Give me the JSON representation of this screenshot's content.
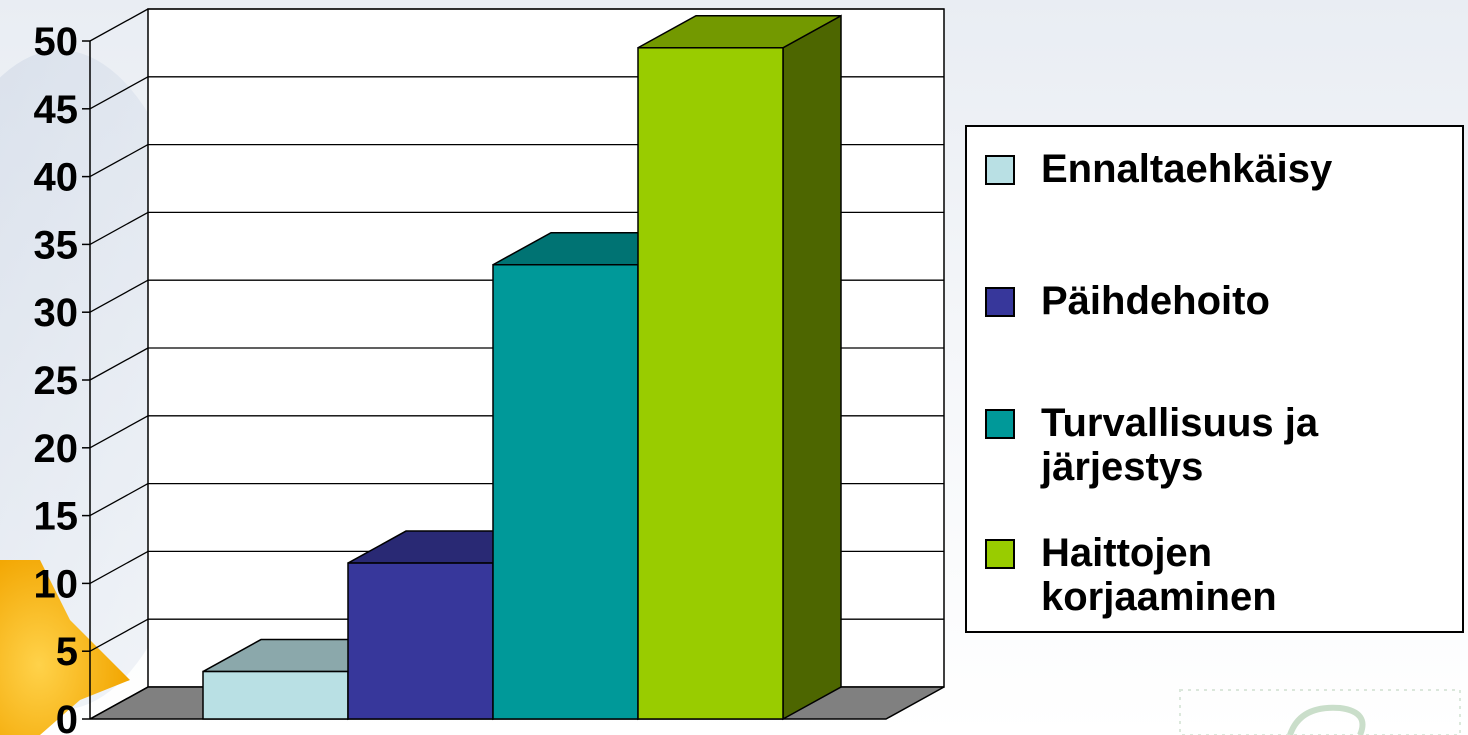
{
  "chart_data": {
    "type": "bar",
    "style": "3d",
    "title": "",
    "xlabel": "",
    "ylabel": "",
    "ylim": [
      0,
      50
    ],
    "y_ticks": [
      "0",
      "5",
      "10",
      "15",
      "20",
      "25",
      "30",
      "35",
      "40",
      "45",
      "50"
    ],
    "grid": true,
    "legend_position": "right",
    "series": [
      {
        "name": "Ennaltaehkäisy",
        "value": 3.5,
        "color": "#b9e0e4"
      },
      {
        "name": "Päihdehoito",
        "value": 11.5,
        "color": "#37379b"
      },
      {
        "name": "Turvallisuus ja\njärjestys",
        "value": 33.5,
        "color": "#009999"
      },
      {
        "name": "Haittojen\nkorjaaminen",
        "value": 49.5,
        "color": "#99cc00"
      }
    ]
  }
}
